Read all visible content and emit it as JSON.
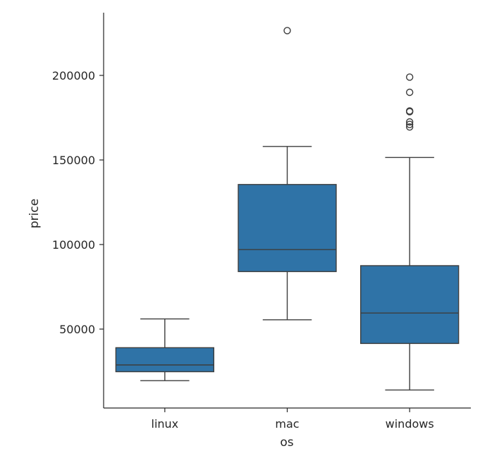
{
  "chart_data": {
    "type": "box",
    "xlabel": "os",
    "ylabel": "price",
    "ylim": [
      5000,
      230000
    ],
    "yticks": [
      50000,
      100000,
      150000,
      200000
    ],
    "grid": false,
    "box_color": "#2f73a7",
    "line_color": "#3d3d3d",
    "categories": [
      "linux",
      "mac",
      "windows"
    ],
    "boxes": [
      {
        "category": "linux",
        "whisker_low": 19500,
        "q1": 24800,
        "median": 28800,
        "q3": 39000,
        "whisker_high": 56000,
        "outliers": []
      },
      {
        "category": "mac",
        "whisker_low": 55500,
        "q1": 84000,
        "median": 97000,
        "q3": 135500,
        "whisker_high": 158000,
        "outliers": [
          226500
        ]
      },
      {
        "category": "windows",
        "whisker_low": 14000,
        "q1": 41500,
        "median": 59500,
        "q3": 87500,
        "whisker_high": 151500,
        "outliers": [
          169500,
          171000,
          172500,
          178500,
          179000,
          190000,
          199000
        ]
      }
    ]
  }
}
